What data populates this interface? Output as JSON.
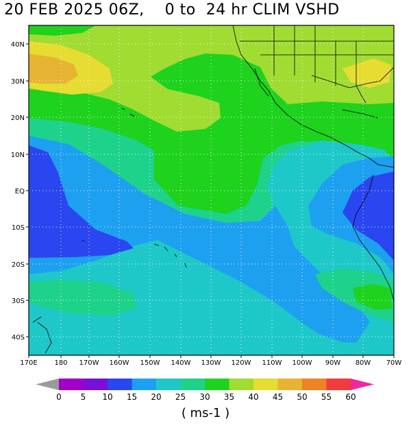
{
  "title": "20 FEB 2025 06Z,    0 to  24 hr CLIM VSHD",
  "lat_labels": [
    "40N",
    "30N",
    "20N",
    "10N",
    "EQ",
    "10S",
    "20S",
    "30S",
    "40S"
  ],
  "lon_labels": [
    "170E",
    "180",
    "170W",
    "160W",
    "150W",
    "140W",
    "130W",
    "120W",
    "110W",
    "100W",
    "90W",
    "80W",
    "70W"
  ],
  "colorbar": {
    "colors": [
      "#a000c8",
      "#7a10d8",
      "#2a46f0",
      "#1ea0f0",
      "#1ec8c8",
      "#1ed28c",
      "#1ed21e",
      "#a0dc32",
      "#e6dc32",
      "#e6b432",
      "#f08228",
      "#f03c3c",
      "#f028a0"
    ],
    "low_arrow_color": "#9a9a9a",
    "high_arrow_color": "#f028a0",
    "tick_labels": [
      "0",
      "5",
      "10",
      "15",
      "20",
      "25",
      "30",
      "35",
      "40",
      "45",
      "50",
      "55",
      "60"
    ]
  },
  "units": "( ms-1 )"
}
